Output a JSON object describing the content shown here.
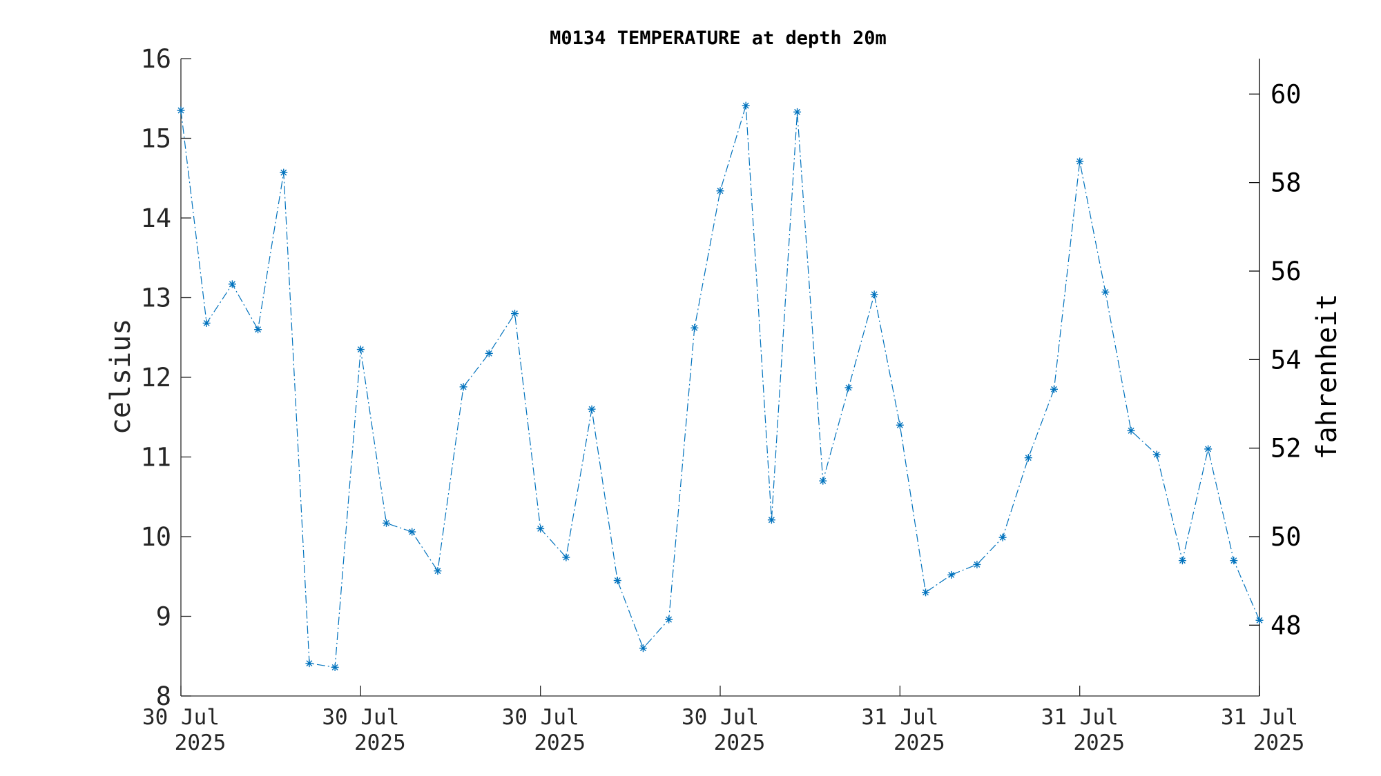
{
  "chart_data": {
    "type": "line",
    "title": "M0134 TEMPERATURE at depth 20m",
    "ylabel": "celsius",
    "ylabel_right": "fahrenheit",
    "ylim": [
      8,
      16
    ],
    "y_ticks": [
      8,
      9,
      10,
      11,
      12,
      13,
      14,
      15,
      16
    ],
    "y2lim": [
      46.4,
      60.8
    ],
    "y2_ticks": [
      48,
      50,
      52,
      54,
      56,
      58,
      60
    ],
    "x_tick_labels": [
      [
        "30 Jul",
        "2025"
      ],
      [
        "30 Jul",
        "2025"
      ],
      [
        "30 Jul",
        "2025"
      ],
      [
        "30 Jul",
        "2025"
      ],
      [
        "31 Jul",
        "2025"
      ],
      [
        "31 Jul",
        "2025"
      ],
      [
        "31 Jul",
        "2025"
      ]
    ],
    "grid": false,
    "marker": "asterisk",
    "line_style": "dash-dot",
    "color": "#0072BD",
    "series": [
      {
        "values": [
          15.35,
          12.68,
          13.17,
          12.6,
          14.57,
          8.41,
          8.36,
          12.35,
          10.17,
          10.06,
          9.57,
          11.88,
          12.3,
          12.8,
          10.1,
          9.74,
          11.6,
          9.45,
          8.6,
          8.96,
          12.62,
          14.34,
          15.41,
          10.21,
          15.33,
          10.7,
          11.87,
          13.04,
          11.4,
          9.3,
          9.52,
          9.65,
          9.99,
          10.99,
          11.85,
          14.71,
          13.07,
          11.33,
          11.03,
          9.7,
          11.1,
          9.7,
          8.95
        ]
      }
    ]
  }
}
